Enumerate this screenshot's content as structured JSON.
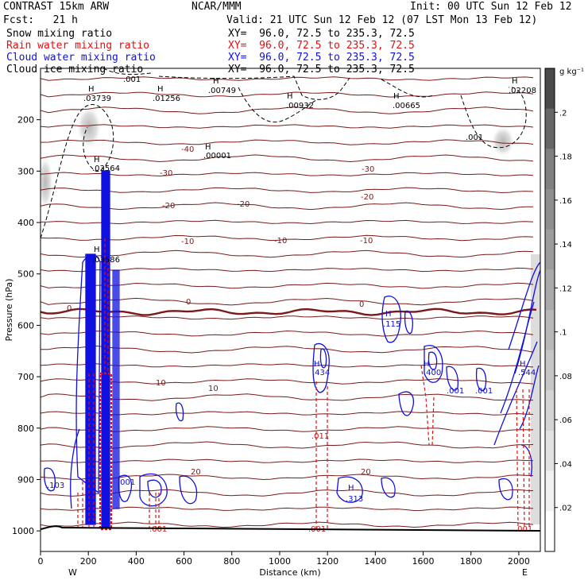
{
  "header": {
    "model": "CONTRAST 15km ARW",
    "center": "NCAR/MMM",
    "init": "Init: 00 UTC Sun 12 Feb 12",
    "fcst": "Fcst:   21 h",
    "valid": "Valid: 21 UTC Sun 12 Feb 12 (07 LST Mon 13 Feb 12)",
    "legend": [
      {
        "label": "Snow mixing ratio",
        "xy": "XY=  96.0, 72.5 to 235.3, 72.5",
        "color": "#000000"
      },
      {
        "label": "Rain water mixing ratio",
        "xy": "XY=  96.0, 72.5 to 235.3, 72.5",
        "color": "#e01010"
      },
      {
        "label": "Cloud water mixing ratio",
        "xy": "XY=  96.0, 72.5 to 235.3, 72.5",
        "color": "#1010e0"
      },
      {
        "label": "Cloud ice mixing ratio",
        "xy": "XY=  96.0, 72.5 to 235.3, 72.5",
        "color": "#000000"
      }
    ]
  },
  "chart_data": {
    "type": "heatmap",
    "xlabel": "Distance (km)",
    "ylabel": "Pressure (hPa)",
    "xlim": [
      0,
      2090
    ],
    "ylim": [
      1040,
      100
    ],
    "x_ticks": [
      0,
      200,
      400,
      600,
      800,
      1000,
      1200,
      1400,
      1600,
      1800,
      2000
    ],
    "y_ticks": [
      200,
      300,
      400,
      500,
      600,
      700,
      800,
      900,
      1000
    ],
    "y_tick_labels": [
      "200",
      "300",
      "400",
      "500",
      "600",
      "700",
      "800",
      "900",
      "1000"
    ],
    "x_end_labels": [
      "W",
      "E"
    ],
    "colorbar": {
      "unit": "g kg⁻¹",
      "ticks": [
        ".02",
        ".04",
        ".06",
        ".08",
        ".1",
        ".12",
        ".14",
        ".16",
        ".18",
        ".2"
      ],
      "colors": [
        "#ffffff",
        "#f0f0f0",
        "#e2e2e2",
        "#d4d4d4",
        "#c6c6c6",
        "#b8b8b8",
        "#aaaaaa",
        "#9c9c9c",
        "#8e8e8e",
        "#808080",
        "#666666",
        "#4a4a4a"
      ]
    },
    "temperature_isotherms_C": [
      "-40",
      "-30",
      "-20",
      "-10",
      "0",
      "10",
      "20"
    ],
    "maxima_labels": [
      {
        "text": "H",
        "value": ".03739"
      },
      {
        "text": "H",
        "value": ".01256"
      },
      {
        "text": "H",
        "value": ".00749"
      },
      {
        "text": "H",
        "value": ".00932"
      },
      {
        "text": "H",
        "value": ".00665"
      },
      {
        "text": "H",
        "value": ".02208"
      },
      {
        "text": "H",
        "value": ".00001"
      },
      {
        "text": "H",
        "value": ".03564"
      },
      {
        "text": "H",
        "value": ".03586"
      },
      {
        "text": "H",
        "value": ".115"
      },
      {
        "text": "H",
        "value": ".434"
      },
      {
        "text": "H",
        "value": ".400"
      },
      {
        "text": "H",
        "value": ".544"
      },
      {
        "text": "H",
        "value": ".313"
      }
    ],
    "contour_labels": [
      ".001",
      ".011",
      ".103",
      ".001",
      ".001",
      ".001",
      ".001",
      ".001",
      ".001",
      ".001"
    ]
  }
}
